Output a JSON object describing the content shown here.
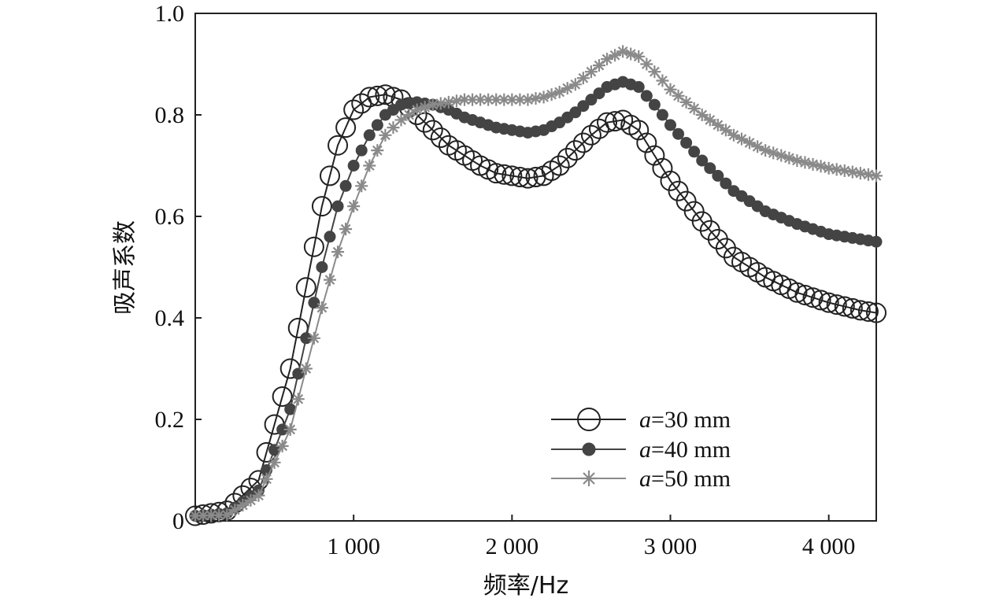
{
  "chart_data": {
    "type": "line",
    "xlabel": "频率/Hz",
    "ylabel": "吸声系数",
    "xlim": [
      0,
      4300
    ],
    "ylim": [
      0,
      1.0
    ],
    "x_ticks": [
      {
        "value": 1000,
        "label": "1 000"
      },
      {
        "value": 2000,
        "label": "2 000"
      },
      {
        "value": 3000,
        "label": "3 000"
      },
      {
        "value": 4000,
        "label": "4 000"
      }
    ],
    "y_ticks": [
      {
        "value": 0,
        "label": "0"
      },
      {
        "value": 0.2,
        "label": "0.2"
      },
      {
        "value": 0.4,
        "label": "0.4"
      },
      {
        "value": 0.6,
        "label": "0.6"
      },
      {
        "value": 0.8,
        "label": "0.8"
      },
      {
        "value": 1.0,
        "label": "1.0"
      }
    ],
    "legend_position": "bottom-right",
    "grid": false,
    "series": [
      {
        "name_prefix": "a",
        "name_suffix": "=30 mm",
        "marker": "open-circle",
        "color": "#222222",
        "x": [
          0,
          200,
          400,
          600,
          800,
          900,
          1000,
          1100,
          1200,
          1300,
          1400,
          1500,
          1600,
          1700,
          1800,
          1900,
          2000,
          2100,
          2200,
          2300,
          2400,
          2500,
          2600,
          2700,
          2800,
          2900,
          3000,
          3200,
          3400,
          3600,
          3800,
          4000,
          4200,
          4300
        ],
        "y": [
          0.01,
          0.02,
          0.08,
          0.3,
          0.62,
          0.74,
          0.81,
          0.835,
          0.84,
          0.83,
          0.8,
          0.77,
          0.74,
          0.72,
          0.7,
          0.685,
          0.68,
          0.675,
          0.68,
          0.7,
          0.73,
          0.76,
          0.785,
          0.79,
          0.77,
          0.72,
          0.67,
          0.59,
          0.52,
          0.48,
          0.45,
          0.43,
          0.415,
          0.41
        ]
      },
      {
        "name_prefix": "a",
        "name_suffix": "=40 mm",
        "marker": "filled-circle",
        "color": "#444444",
        "x": [
          0,
          200,
          400,
          600,
          800,
          900,
          1000,
          1100,
          1200,
          1300,
          1400,
          1500,
          1600,
          1700,
          1800,
          1900,
          2000,
          2100,
          2200,
          2300,
          2400,
          2500,
          2600,
          2700,
          2800,
          2900,
          3000,
          3200,
          3400,
          3600,
          3800,
          4000,
          4200,
          4300
        ],
        "y": [
          0.01,
          0.015,
          0.06,
          0.22,
          0.5,
          0.62,
          0.7,
          0.76,
          0.8,
          0.82,
          0.825,
          0.82,
          0.81,
          0.795,
          0.785,
          0.775,
          0.77,
          0.765,
          0.77,
          0.785,
          0.805,
          0.83,
          0.855,
          0.865,
          0.855,
          0.82,
          0.78,
          0.71,
          0.65,
          0.61,
          0.585,
          0.565,
          0.555,
          0.55
        ]
      },
      {
        "name_prefix": "a",
        "name_suffix": "=50 mm",
        "marker": "star",
        "color": "#8a8a8a",
        "x": [
          0,
          200,
          400,
          600,
          800,
          900,
          1000,
          1100,
          1200,
          1300,
          1400,
          1500,
          1600,
          1700,
          1800,
          1900,
          2000,
          2100,
          2200,
          2300,
          2400,
          2500,
          2600,
          2700,
          2800,
          2900,
          3000,
          3200,
          3400,
          3600,
          3800,
          4000,
          4200,
          4300
        ],
        "y": [
          0.01,
          0.012,
          0.05,
          0.18,
          0.42,
          0.53,
          0.62,
          0.7,
          0.76,
          0.79,
          0.81,
          0.82,
          0.825,
          0.83,
          0.83,
          0.83,
          0.83,
          0.83,
          0.835,
          0.845,
          0.86,
          0.885,
          0.91,
          0.925,
          0.915,
          0.885,
          0.85,
          0.8,
          0.76,
          0.73,
          0.71,
          0.695,
          0.685,
          0.68
        ]
      }
    ]
  }
}
